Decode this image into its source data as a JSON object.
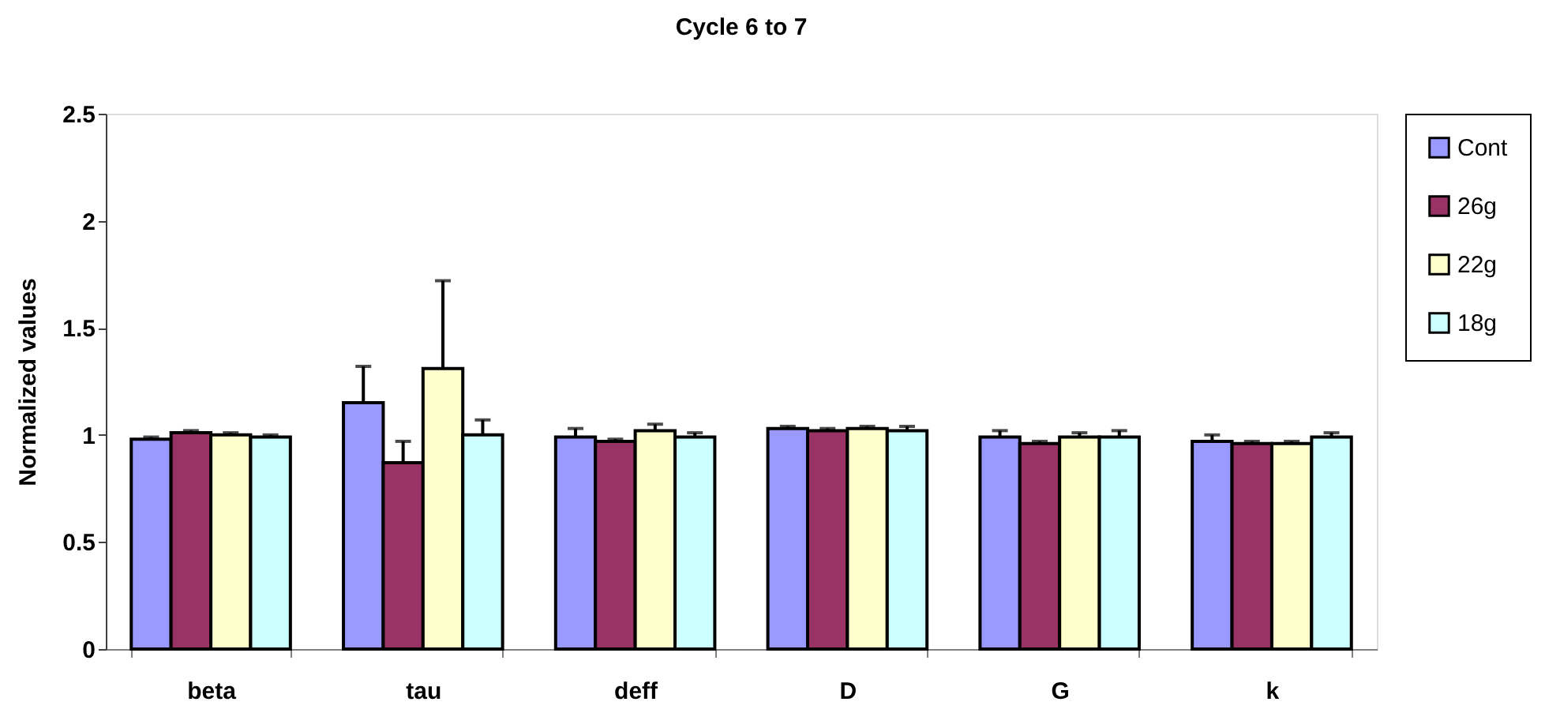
{
  "chart_data": {
    "type": "bar",
    "title": "Cycle 6 to 7",
    "ylabel": "Normalized values",
    "categories": [
      "beta",
      "tau",
      "deff",
      "D",
      "G",
      "k"
    ],
    "series": [
      {
        "name": "Cont",
        "color": "#9999ff",
        "values": [
          0.98,
          1.15,
          0.99,
          1.03,
          0.99,
          0.97
        ],
        "errors": [
          [
            0.98,
            0.99
          ],
          [
            1.15,
            1.32
          ],
          [
            0.99,
            1.03
          ],
          [
            1.03,
            1.04
          ],
          [
            0.99,
            1.02
          ],
          [
            0.97,
            1.0
          ]
        ]
      },
      {
        "name": "26g",
        "color": "#993366",
        "values": [
          1.01,
          0.87,
          0.97,
          1.02,
          0.96,
          0.96
        ],
        "errors": [
          [
            1.01,
            1.02
          ],
          [
            0.87,
            0.97
          ],
          [
            0.97,
            0.98
          ],
          [
            1.02,
            1.03
          ],
          [
            0.96,
            0.97
          ],
          [
            0.96,
            0.97
          ]
        ]
      },
      {
        "name": "22g",
        "color": "#ffffcc",
        "values": [
          1.0,
          1.31,
          1.02,
          1.03,
          0.99,
          0.96
        ],
        "errors": [
          [
            1.0,
            1.01
          ],
          [
            1.31,
            1.72
          ],
          [
            1.02,
            1.05
          ],
          [
            1.03,
            1.04
          ],
          [
            0.99,
            1.01
          ],
          [
            0.96,
            0.97
          ]
        ]
      },
      {
        "name": "18g",
        "color": "#ccffff",
        "values": [
          0.99,
          1.0,
          0.99,
          1.02,
          0.99,
          0.99
        ],
        "errors": [
          [
            0.99,
            1.0
          ],
          [
            1.0,
            1.07
          ],
          [
            0.99,
            1.01
          ],
          [
            1.02,
            1.04
          ],
          [
            0.99,
            1.02
          ],
          [
            0.99,
            1.01
          ]
        ]
      }
    ],
    "ylim": [
      0,
      2.5
    ],
    "yticks": [
      0,
      0.5,
      1,
      1.5,
      2,
      2.5
    ],
    "grid": false,
    "legend": "right"
  }
}
